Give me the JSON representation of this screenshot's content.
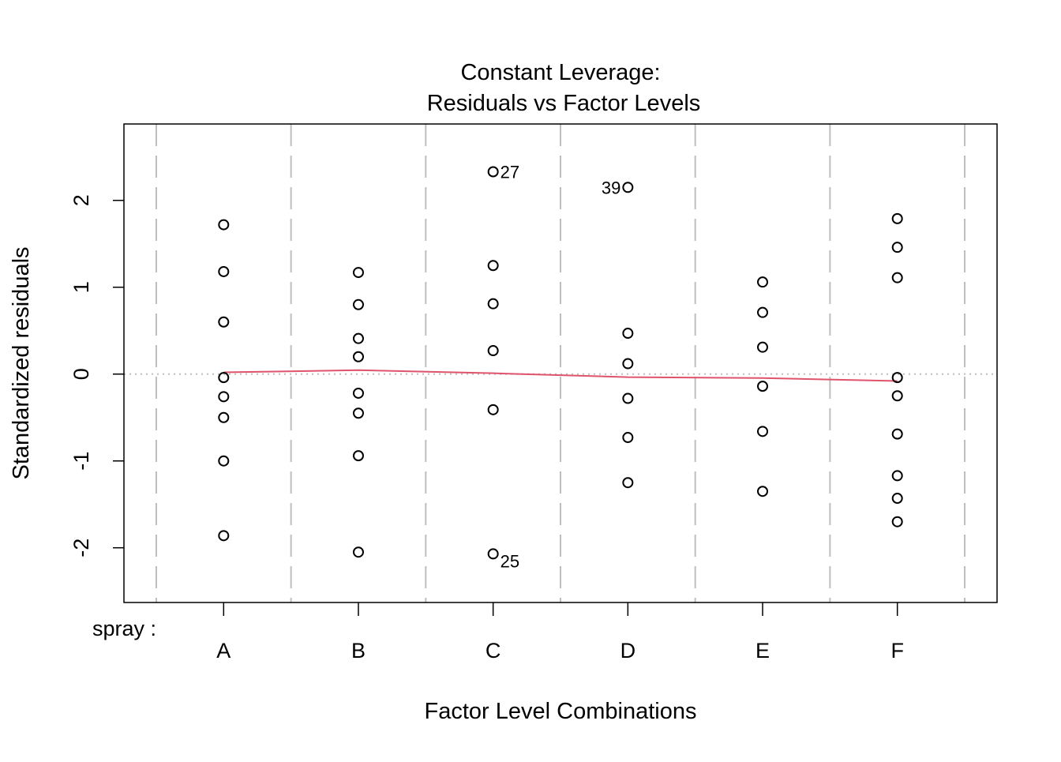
{
  "chart_data": {
    "type": "scatter",
    "title": "Constant Leverage:",
    "subtitle": "Residuals vs Factor Levels",
    "x_label": "Factor Level Combinations",
    "y_label": "Standardized residuals",
    "factor_label": "spray :",
    "categories": [
      "A",
      "B",
      "C",
      "D",
      "E",
      "F"
    ],
    "groups": [
      [
        1.72,
        1.18,
        0.6,
        -0.04,
        -0.26,
        -0.5,
        -1.0,
        -1.86
      ],
      [
        1.17,
        0.8,
        0.41,
        0.2,
        -0.22,
        -0.45,
        -0.94,
        -2.05
      ],
      [
        2.33,
        1.25,
        0.81,
        0.27,
        -0.41,
        -2.07
      ],
      [
        2.15,
        0.47,
        0.12,
        -0.28,
        -0.73,
        -1.25
      ],
      [
        1.06,
        0.71,
        0.31,
        -0.14,
        -0.66,
        -1.35
      ],
      [
        1.79,
        1.46,
        1.11,
        -0.04,
        -0.25,
        -0.69,
        -1.17,
        -1.43,
        -1.7
      ]
    ],
    "point_color": "#000000",
    "point_labels": [
      {
        "group": 2,
        "index": 0,
        "label": "27",
        "side": "right"
      },
      {
        "group": 2,
        "index": 5,
        "label": "25",
        "side": "right"
      },
      {
        "group": 3,
        "index": 0,
        "label": "39",
        "side": "left"
      }
    ],
    "smooth": {
      "color": "#DF536B",
      "values": [
        0.02,
        0.045,
        0.01,
        -0.035,
        -0.045,
        -0.08
      ]
    },
    "hline": 0,
    "ylim": [
      -2.63,
      2.88
    ],
    "yticks": [
      -2,
      -1,
      0,
      1,
      2
    ]
  }
}
